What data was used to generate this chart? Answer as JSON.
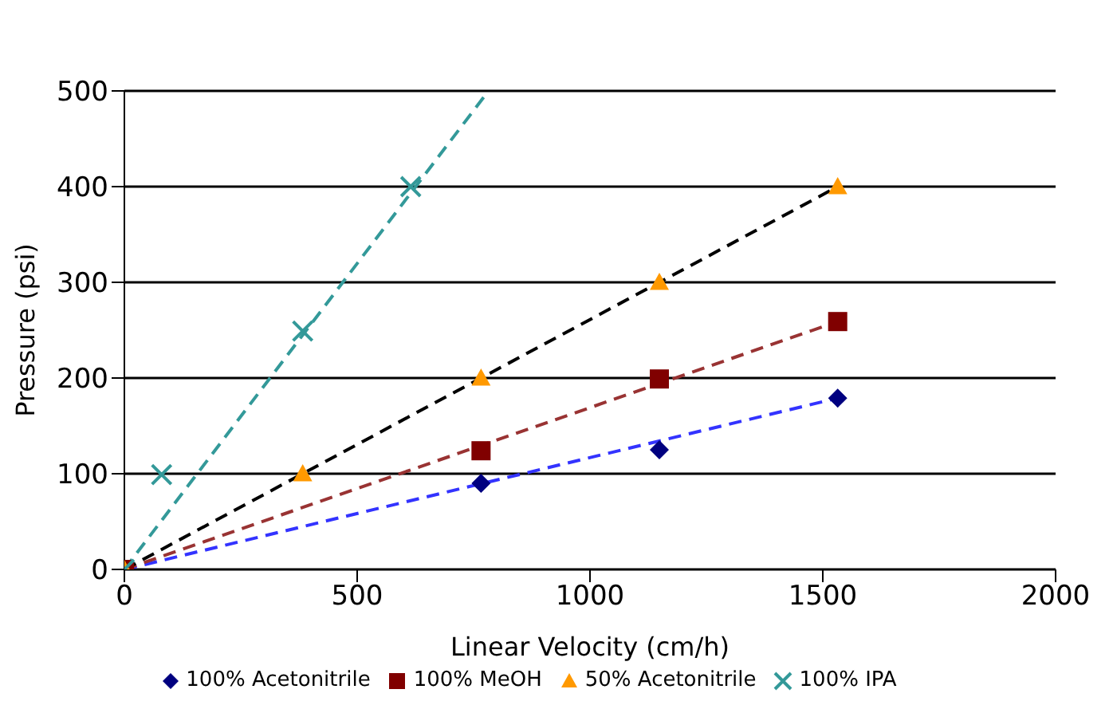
{
  "chart_data": {
    "type": "scatter",
    "xlabel": "Linear Velocity (cm/h)",
    "ylabel": "Pressure (psi)",
    "xlim": [
      0,
      2000
    ],
    "xticks": [
      0,
      500,
      1000,
      1500,
      2000
    ],
    "ylim": [
      0,
      500
    ],
    "yticks": [
      0,
      100,
      200,
      300,
      400,
      500
    ],
    "grid": "y",
    "legend": "bottom",
    "series": [
      {
        "name": "100% Acetonitrile",
        "color": "#000080",
        "marker": "diamond",
        "x": [
          766,
          1149,
          1532
        ],
        "values": [
          90,
          125,
          179
        ]
      },
      {
        "name": "100% MeOH",
        "color": "#800000",
        "marker": "square",
        "x": [
          0,
          766,
          1149,
          1532
        ],
        "values": [
          0,
          124,
          199,
          259
        ]
      },
      {
        "name": "50% Acetonitrile",
        "color": "#ff9900",
        "marker": "triangle",
        "x": [
          0,
          383,
          766,
          1149,
          1532
        ],
        "values": [
          0,
          100,
          200,
          300,
          400
        ]
      },
      {
        "name": "100% IPA",
        "color": "#339999",
        "marker": "cross",
        "x": [
          0,
          80,
          383,
          615
        ],
        "values": [
          0,
          99,
          249,
          400
        ]
      },
      {
        "type": "line",
        "color": "#3333ff",
        "line_style": "dashed",
        "marker": "none",
        "x": [
          0,
          1532
        ],
        "values": [
          0,
          179
        ]
      },
      {
        "type": "line",
        "color": "#993333",
        "line_style": "dashed",
        "marker": "none",
        "x": [
          0,
          1532
        ],
        "values": [
          0,
          259
        ]
      },
      {
        "type": "line",
        "color": "#000000",
        "line_style": "dashed",
        "marker": "none",
        "x": [
          0,
          1532
        ],
        "values": [
          0,
          400
        ]
      },
      {
        "type": "line",
        "color": "#339999",
        "line_style": "dashed",
        "marker": "none",
        "x": [
          0,
          782
        ],
        "values": [
          0,
          500
        ]
      }
    ]
  }
}
